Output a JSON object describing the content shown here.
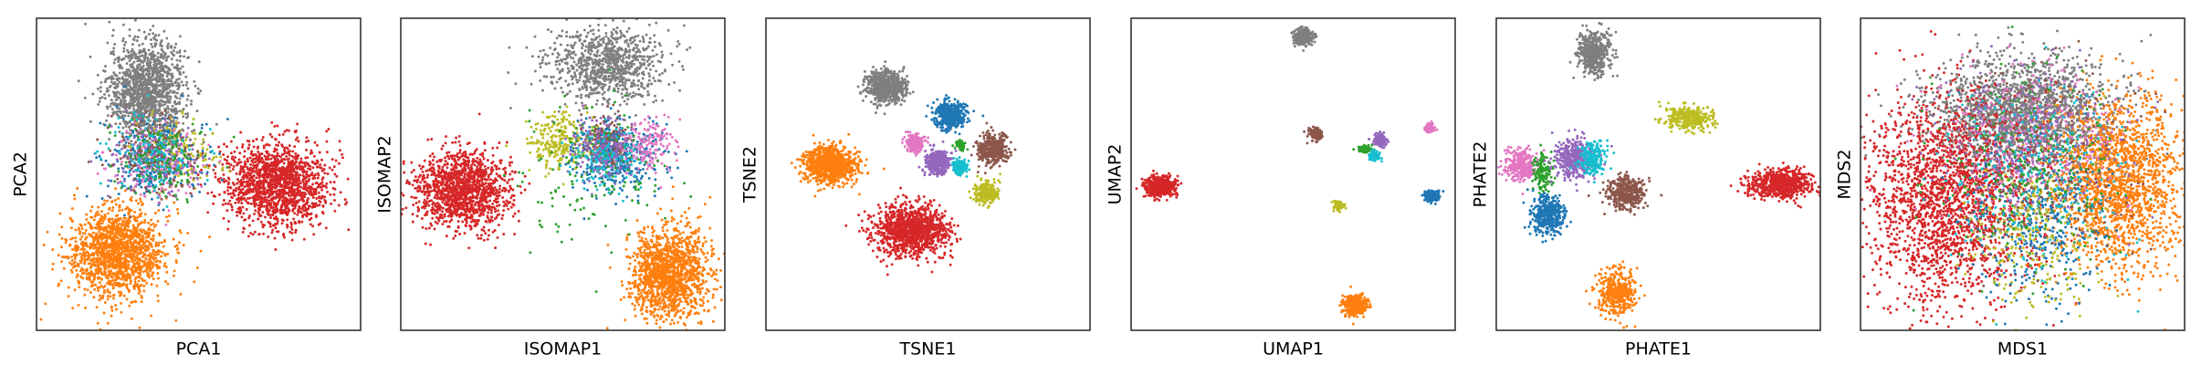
{
  "colors": {
    "blue": "#1f77b4",
    "orange": "#ff7f0e",
    "green": "#2ca02c",
    "red": "#d62728",
    "purple": "#9467bd",
    "brown": "#8c564b",
    "pink": "#e377c2",
    "gray": "#7f7f7f",
    "olive": "#bcbd22",
    "cyan": "#17becf"
  },
  "chart_data": [
    {
      "type": "scatter",
      "title": "",
      "xlabel": "PCA1",
      "ylabel": "PCA2",
      "grid": false,
      "legend": "none",
      "xlim": [
        0,
        100
      ],
      "ylim": [
        0,
        100
      ],
      "clusters": [
        {
          "color": "gray",
          "center": [
            34,
            77
          ],
          "spread": [
            6,
            8
          ],
          "n": 1400
        },
        {
          "color": "orange",
          "center": [
            25,
            25
          ],
          "spread": [
            7.5,
            7
          ],
          "n": 1500
        },
        {
          "color": "red",
          "center": [
            74,
            47
          ],
          "spread": [
            8,
            6.5
          ],
          "n": 1500
        },
        {
          "color": "olive",
          "center": [
            43,
            57
          ],
          "spread": [
            7,
            5.5
          ],
          "n": 160
        },
        {
          "color": "blue",
          "center": [
            36,
            55
          ],
          "spread": [
            8,
            6
          ],
          "n": 280
        },
        {
          "color": "pink",
          "center": [
            36,
            54
          ],
          "spread": [
            7,
            6
          ],
          "n": 160
        },
        {
          "color": "purple",
          "center": [
            35,
            55
          ],
          "spread": [
            7,
            6
          ],
          "n": 160
        },
        {
          "color": "brown",
          "center": [
            36,
            56
          ],
          "spread": [
            7,
            6
          ],
          "n": 160
        },
        {
          "color": "green",
          "center": [
            38,
            55
          ],
          "spread": [
            7,
            6
          ],
          "n": 140
        },
        {
          "color": "cyan",
          "center": [
            37,
            56
          ],
          "spread": [
            7,
            6
          ],
          "n": 120
        }
      ]
    },
    {
      "type": "scatter",
      "title": "",
      "xlabel": "ISOMAP1",
      "ylabel": "ISOMAP2",
      "grid": false,
      "legend": "none",
      "xlim": [
        0,
        100
      ],
      "ylim": [
        0,
        100
      ],
      "clusters": [
        {
          "color": "gray",
          "center": [
            63,
            85
          ],
          "spread": [
            9,
            6
          ],
          "n": 900
        },
        {
          "color": "red",
          "center": [
            19,
            45
          ],
          "spread": [
            7,
            6
          ],
          "n": 1400
        },
        {
          "color": "orange",
          "center": [
            83,
            18
          ],
          "spread": [
            6,
            7
          ],
          "n": 1400
        },
        {
          "color": "olive",
          "center": [
            49,
            60
          ],
          "spread": [
            5,
            5
          ],
          "n": 260
        },
        {
          "color": "brown",
          "center": [
            64,
            60
          ],
          "spread": [
            3.5,
            4
          ],
          "n": 280
        },
        {
          "color": "blue",
          "center": [
            67,
            55
          ],
          "spread": [
            7,
            6
          ],
          "n": 300
        },
        {
          "color": "purple",
          "center": [
            62,
            58
          ],
          "spread": [
            5,
            5
          ],
          "n": 200
        },
        {
          "color": "pink",
          "center": [
            77,
            60
          ],
          "spread": [
            4,
            4
          ],
          "n": 160
        },
        {
          "color": "green",
          "center": [
            60,
            50
          ],
          "spread": [
            12,
            12
          ],
          "n": 140
        },
        {
          "color": "cyan",
          "center": [
            63,
            55
          ],
          "spread": [
            6,
            5
          ],
          "n": 120
        }
      ]
    },
    {
      "type": "scatter",
      "title": "",
      "xlabel": "TSNE1",
      "ylabel": "TSNE2",
      "grid": false,
      "legend": "none",
      "xlim": [
        0,
        100
      ],
      "ylim": [
        0,
        100
      ],
      "clusters": [
        {
          "color": "gray",
          "center": [
            37,
            78
          ],
          "spread": [
            3,
            2.5
          ],
          "n": 700
        },
        {
          "color": "orange",
          "center": [
            20,
            53
          ],
          "spread": [
            4,
            3
          ],
          "n": 900
        },
        {
          "color": "red",
          "center": [
            45,
            32
          ],
          "spread": [
            5.5,
            4
          ],
          "n": 1200
        },
        {
          "color": "blue",
          "center": [
            57,
            69
          ],
          "spread": [
            2.4,
            2.4
          ],
          "n": 400
        },
        {
          "color": "brown",
          "center": [
            70,
            58
          ],
          "spread": [
            2.4,
            2.4
          ],
          "n": 400
        },
        {
          "color": "purple",
          "center": [
            53,
            54
          ],
          "spread": [
            2,
            2
          ],
          "n": 350
        },
        {
          "color": "pink",
          "center": [
            46,
            60
          ],
          "spread": [
            1.5,
            1.5
          ],
          "n": 200
        },
        {
          "color": "cyan",
          "center": [
            60,
            52
          ],
          "spread": [
            1.3,
            1.3
          ],
          "n": 150
        },
        {
          "color": "olive",
          "center": [
            68,
            44
          ],
          "spread": [
            1.8,
            1.8
          ],
          "n": 250
        },
        {
          "color": "green",
          "center": [
            60,
            59
          ],
          "spread": [
            0.8,
            0.8
          ],
          "n": 60
        }
      ]
    },
    {
      "type": "scatter",
      "title": "",
      "xlabel": "UMAP1",
      "ylabel": "UMAP2",
      "grid": false,
      "legend": "none",
      "xlim": [
        0,
        100
      ],
      "ylim": [
        0,
        100
      ],
      "clusters": [
        {
          "color": "gray",
          "center": [
            53,
            94
          ],
          "spread": [
            1.5,
            1.3
          ],
          "n": 300
        },
        {
          "color": "red",
          "center": [
            9,
            46
          ],
          "spread": [
            2.3,
            1.6
          ],
          "n": 600
        },
        {
          "color": "orange",
          "center": [
            69,
            8
          ],
          "spread": [
            1.8,
            1.6
          ],
          "n": 400
        },
        {
          "color": "brown",
          "center": [
            57,
            63
          ],
          "spread": [
            1,
            1
          ],
          "n": 150
        },
        {
          "color": "purple",
          "center": [
            77,
            61
          ],
          "spread": [
            1,
            1
          ],
          "n": 150
        },
        {
          "color": "green",
          "center": [
            72,
            58
          ],
          "spread": [
            1.2,
            0.5
          ],
          "n": 80
        },
        {
          "color": "cyan",
          "center": [
            75,
            56
          ],
          "spread": [
            0.8,
            0.8
          ],
          "n": 80
        },
        {
          "color": "olive",
          "center": [
            64,
            40
          ],
          "spread": [
            0.8,
            0.8
          ],
          "n": 80
        },
        {
          "color": "blue",
          "center": [
            93,
            43
          ],
          "spread": [
            1.2,
            0.8
          ],
          "n": 150
        },
        {
          "color": "pink",
          "center": [
            92,
            65
          ],
          "spread": [
            0.8,
            0.8
          ],
          "n": 80
        }
      ]
    },
    {
      "type": "scatter",
      "title": "",
      "xlabel": "PHATE1",
      "ylabel": "PHATE2",
      "grid": false,
      "legend": "none",
      "xlim": [
        0,
        100
      ],
      "ylim": [
        0,
        100
      ],
      "clusters": [
        {
          "color": "gray",
          "center": [
            30,
            89
          ],
          "spread": [
            2.5,
            3.5
          ],
          "n": 500
        },
        {
          "color": "olive",
          "center": [
            59,
            68
          ],
          "spread": [
            3.5,
            2
          ],
          "n": 350
        },
        {
          "color": "pink",
          "center": [
            8,
            53
          ],
          "spread": [
            2.5,
            2.5
          ],
          "n": 300
        },
        {
          "color": "green",
          "center": [
            14,
            50
          ],
          "spread": [
            1.5,
            3
          ],
          "n": 150
        },
        {
          "color": "purple",
          "center": [
            24,
            55
          ],
          "spread": [
            3,
            3
          ],
          "n": 400
        },
        {
          "color": "cyan",
          "center": [
            30,
            55
          ],
          "spread": [
            2,
            2.5
          ],
          "n": 200
        },
        {
          "color": "blue",
          "center": [
            16,
            37
          ],
          "spread": [
            2.5,
            3
          ],
          "n": 400
        },
        {
          "color": "brown",
          "center": [
            40,
            44
          ],
          "spread": [
            3,
            2.5
          ],
          "n": 400
        },
        {
          "color": "red",
          "center": [
            88,
            47
          ],
          "spread": [
            5,
            2.2
          ],
          "n": 700
        },
        {
          "color": "orange",
          "center": [
            37,
            12
          ],
          "spread": [
            3,
            4
          ],
          "n": 400
        }
      ]
    },
    {
      "type": "scatter",
      "title": "",
      "xlabel": "MDS1",
      "ylabel": "MDS2",
      "grid": false,
      "legend": "none",
      "xlim": [
        0,
        100
      ],
      "ylim": [
        0,
        100
      ],
      "clusters": [
        {
          "color": "gray",
          "center": [
            50,
            70
          ],
          "spread": [
            14,
            9
          ],
          "n": 1800
        },
        {
          "color": "red",
          "center": [
            27,
            42
          ],
          "spread": [
            13,
            17
          ],
          "n": 2200
        },
        {
          "color": "orange",
          "center": [
            80,
            47
          ],
          "spread": [
            10,
            14
          ],
          "n": 1800
        },
        {
          "color": "blue",
          "center": [
            55,
            35
          ],
          "spread": [
            10,
            13
          ],
          "n": 400
        },
        {
          "color": "olive",
          "center": [
            53,
            32
          ],
          "spread": [
            10,
            13
          ],
          "n": 300
        },
        {
          "color": "pink",
          "center": [
            52,
            62
          ],
          "spread": [
            14,
            12
          ],
          "n": 300
        },
        {
          "color": "purple",
          "center": [
            52,
            60
          ],
          "spread": [
            14,
            12
          ],
          "n": 300
        },
        {
          "color": "brown",
          "center": [
            55,
            55
          ],
          "spread": [
            14,
            14
          ],
          "n": 250
        },
        {
          "color": "green",
          "center": [
            52,
            50
          ],
          "spread": [
            15,
            15
          ],
          "n": 250
        },
        {
          "color": "cyan",
          "center": [
            55,
            50
          ],
          "spread": [
            14,
            14
          ],
          "n": 250
        }
      ]
    }
  ]
}
